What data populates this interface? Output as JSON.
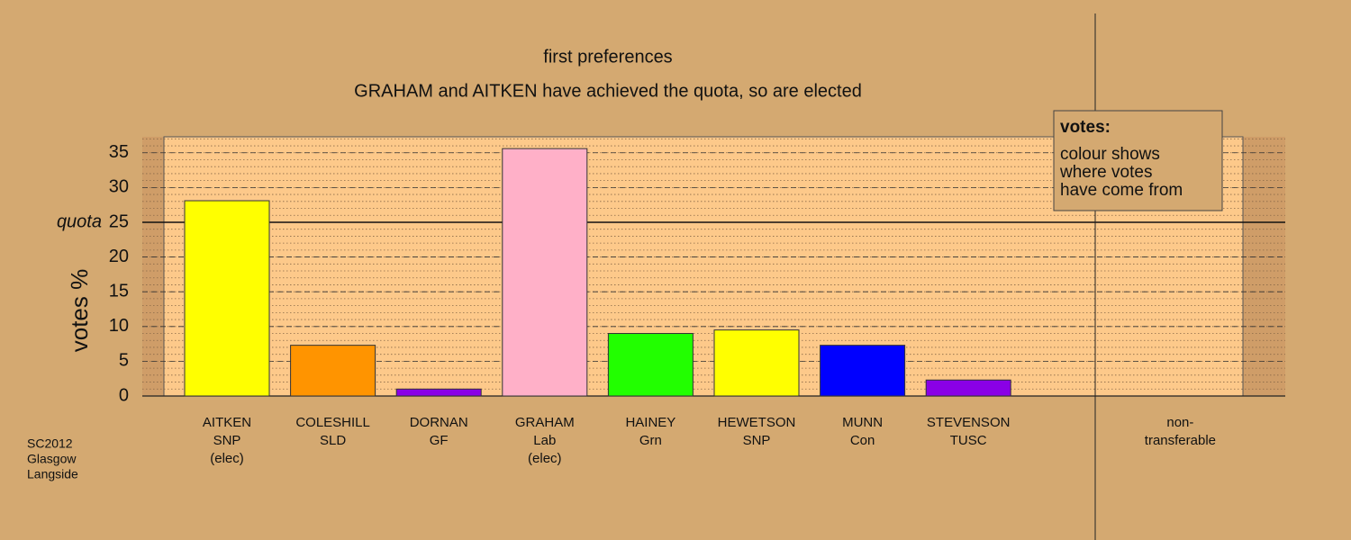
{
  "chart_data": {
    "type": "bar",
    "title": "first preferences",
    "subtitle": "GRAHAM and AITKEN have achieved the quota, so are elected",
    "y_label": "votes %",
    "categories": [
      [
        "AITKEN",
        "SNP",
        "(elec)"
      ],
      [
        "COLESHILL",
        "SLD"
      ],
      [
        "DORNAN",
        "GF"
      ],
      [
        "GRAHAM",
        "Lab",
        "(elec)"
      ],
      [
        "HAINEY",
        "Grn"
      ],
      [
        "HEWETSON",
        "SNP"
      ],
      [
        "MUNN",
        "Con"
      ],
      [
        "STEVENSON",
        "TUSC"
      ],
      null,
      [
        "non-",
        "transferable"
      ]
    ],
    "values": [
      28.1,
      7.3,
      1.0,
      35.6,
      9.0,
      9.5,
      7.3,
      2.3,
      null,
      0
    ],
    "colors": [
      "#ffff00",
      "#ff9400",
      "#8a00e6",
      "#ffb0c8",
      "#22ff00",
      "#ffff00",
      "#0000ff",
      "#8a00e6",
      null,
      "#d4a971"
    ],
    "ylim": [
      0,
      37.3
    ],
    "yticks": [
      0,
      5,
      10,
      15,
      20,
      25,
      30,
      35
    ],
    "quota": {
      "value": 25,
      "label": "quota"
    },
    "legend": {
      "title": "votes:",
      "lines": [
        "colour shows",
        "where votes",
        "have come from"
      ]
    },
    "footnote": [
      "SC2012",
      "Glasgow",
      "Langside"
    ],
    "grid": true
  }
}
